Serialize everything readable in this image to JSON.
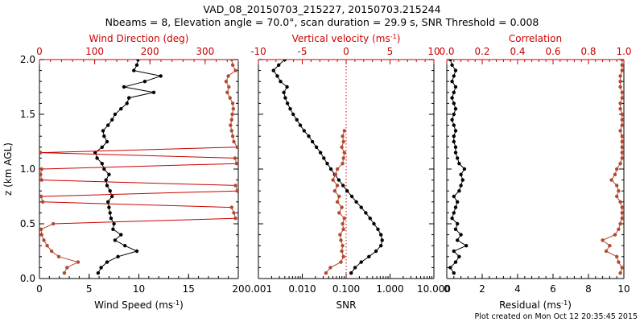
{
  "title": {
    "line1": "VAD_08_20150703_215227, 20150703.215244",
    "line2": "Nbeams = 8, Elevation angle = 70.0°, scan duration = 29.9 s, SNR Threshold = 0.008"
  },
  "footer": "Plot created on Mon Oct 12 20:35:45 2015",
  "colors": {
    "black": "#000000",
    "red": "#cc0000",
    "brown": "#b5472e"
  },
  "chart_data": [
    {
      "type": "line",
      "panel": "left",
      "ylabel": "z (km AGL)",
      "ylim": [
        0,
        2
      ],
      "yticks": [
        "0.0",
        "0.5",
        "1.0",
        "1.5",
        "2.0"
      ],
      "bottom_axis": {
        "label": "Wind Speed (ms",
        "label_sup": "-1",
        "label_end": ")",
        "lim": [
          0,
          20
        ],
        "ticks": [
          "0",
          "5",
          "10",
          "15",
          "20"
        ]
      },
      "top_axis": {
        "label": "Wind Direction (deg)",
        "lim": [
          0,
          360
        ],
        "ticks": [
          "0",
          "100",
          "200",
          "300"
        ]
      },
      "series": [
        {
          "name": "Wind Speed",
          "axis": "bottom",
          "color": "black",
          "z": [
            0.05,
            0.1,
            0.15,
            0.2,
            0.25,
            0.3,
            0.35,
            0.4,
            0.45,
            0.5,
            0.55,
            0.6,
            0.65,
            0.7,
            0.75,
            0.8,
            0.85,
            0.9,
            0.95,
            1.0,
            1.05,
            1.1,
            1.15,
            1.2,
            1.25,
            1.3,
            1.35,
            1.4,
            1.45,
            1.5,
            1.55,
            1.6,
            1.65,
            1.7,
            1.75,
            1.8,
            1.85,
            1.9,
            1.95,
            2.0
          ],
          "values": [
            5.9,
            6.2,
            6.8,
            7.9,
            9.8,
            8.6,
            7.6,
            8.2,
            7.4,
            7.5,
            7.2,
            7.1,
            7.0,
            6.9,
            7.3,
            7.1,
            6.8,
            6.7,
            7.0,
            6.5,
            6.3,
            5.8,
            5.6,
            6.3,
            6.8,
            6.5,
            6.4,
            6.9,
            7.3,
            7.6,
            8.2,
            8.8,
            9.0,
            11.5,
            8.5,
            10.6,
            12.2,
            9.5,
            9.8,
            9.9
          ]
        },
        {
          "name": "Wind Direction",
          "axis": "top",
          "color": "brown",
          "z": [
            0.05,
            0.1,
            0.15,
            0.2,
            0.25,
            0.3,
            0.35,
            0.4,
            0.45,
            0.5,
            0.55,
            0.6,
            0.65,
            0.7,
            0.75,
            0.8,
            0.85,
            0.9,
            0.95,
            1.0,
            1.05,
            1.1,
            1.15,
            1.2,
            1.25,
            1.3,
            1.35,
            1.4,
            1.45,
            1.5,
            1.55,
            1.6,
            1.65,
            1.7,
            1.75,
            1.8,
            1.85,
            1.9,
            1.95,
            2.0
          ],
          "values": [
            45,
            50,
            70,
            35,
            22,
            14,
            8,
            4,
            3,
            25,
            355,
            352,
            348,
            6,
            3,
            358,
            355,
            4,
            2,
            4,
            357,
            354,
            2,
            358,
            352,
            350,
            348,
            346,
            348,
            349,
            351,
            350,
            345,
            340,
            343,
            338,
            342,
            355,
            350,
            348
          ]
        }
      ]
    },
    {
      "type": "line",
      "panel": "middle",
      "ylim": [
        0,
        2
      ],
      "bottom_axis": {
        "label": "SNR",
        "scale": "log",
        "lim": [
          0.001,
          10
        ],
        "ticks": [
          "0.001",
          "0.010",
          "0.100",
          "1.000",
          "10.000"
        ]
      },
      "top_axis": {
        "label": "Vertical velocity (ms",
        "label_sup": "-1",
        "label_end": ")",
        "lim": [
          -10,
          10
        ],
        "ticks": [
          "-10",
          "-5",
          "0",
          "5",
          "10"
        ]
      },
      "series": [
        {
          "name": "SNR",
          "axis": "bottom",
          "color": "black",
          "z": [
            0.05,
            0.1,
            0.15,
            0.2,
            0.25,
            0.3,
            0.35,
            0.4,
            0.45,
            0.5,
            0.55,
            0.6,
            0.65,
            0.7,
            0.75,
            0.8,
            0.85,
            0.9,
            0.95,
            1.0,
            1.05,
            1.1,
            1.15,
            1.2,
            1.25,
            1.3,
            1.35,
            1.4,
            1.45,
            1.5,
            1.55,
            1.6,
            1.65,
            1.7,
            1.75,
            1.8,
            1.85,
            1.9,
            1.95,
            2.0
          ],
          "values": [
            0.13,
            0.16,
            0.22,
            0.33,
            0.48,
            0.62,
            0.66,
            0.62,
            0.53,
            0.43,
            0.35,
            0.28,
            0.22,
            0.17,
            0.135,
            0.105,
            0.085,
            0.068,
            0.055,
            0.045,
            0.037,
            0.031,
            0.026,
            0.021,
            0.017,
            0.014,
            0.011,
            0.009,
            0.0075,
            0.0062,
            0.0053,
            0.0046,
            0.0041,
            0.0038,
            0.0045,
            0.0032,
            0.0027,
            0.0022,
            0.0029,
            0.004
          ]
        },
        {
          "name": "Vertical velocity",
          "axis": "top",
          "color": "brown",
          "z": [
            0.05,
            0.1,
            0.15,
            0.2,
            0.25,
            0.3,
            0.35,
            0.4,
            0.45,
            0.5,
            0.55,
            0.6,
            0.65,
            0.7,
            0.75,
            0.8,
            0.85,
            0.9,
            0.95,
            1.0,
            1.05,
            1.1,
            1.15,
            1.2,
            1.25,
            1.3,
            1.35
          ],
          "values": [
            -2.3,
            -1.8,
            -0.6,
            -0.3,
            -0.5,
            -0.4,
            -0.6,
            -0.7,
            -0.3,
            -0.4,
            -0.2,
            -0.8,
            -0.5,
            -1.0,
            -0.8,
            -1.3,
            -1.0,
            -1.5,
            -1.2,
            -1.0,
            -0.4,
            -0.3,
            -0.2,
            -0.5,
            -0.3,
            -0.4,
            -0.2
          ]
        }
      ],
      "reference_line": {
        "axis": "top",
        "value": 0,
        "style": "dotted",
        "color": "red"
      }
    },
    {
      "type": "line",
      "panel": "right",
      "ylim": [
        0,
        2
      ],
      "bottom_axis": {
        "label": "Residual (ms",
        "label_sup": "-1",
        "label_end": ")",
        "lim": [
          0,
          10
        ],
        "ticks": [
          "0",
          "2",
          "4",
          "6",
          "8",
          "10"
        ]
      },
      "top_axis": {
        "label": "Correlation",
        "lim": [
          0,
          1
        ],
        "ticks": [
          "0.0",
          "0.2",
          "0.4",
          "0.6",
          "0.8",
          "1.0"
        ]
      },
      "series": [
        {
          "name": "Residual",
          "axis": "bottom",
          "color": "black",
          "z": [
            0.05,
            0.1,
            0.15,
            0.2,
            0.25,
            0.3,
            0.35,
            0.4,
            0.45,
            0.5,
            0.55,
            0.6,
            0.65,
            0.7,
            0.75,
            0.8,
            0.85,
            0.9,
            0.95,
            1.0,
            1.05,
            1.1,
            1.15,
            1.2,
            1.25,
            1.3,
            1.35,
            1.4,
            1.45,
            1.5,
            1.55,
            1.6,
            1.65,
            1.7,
            1.75,
            1.8,
            1.85,
            1.9,
            1.95,
            2.0
          ],
          "values": [
            0.4,
            0.2,
            0.5,
            0.7,
            0.4,
            1.1,
            0.6,
            0.8,
            0.5,
            0.6,
            0.3,
            0.4,
            0.5,
            0.6,
            0.4,
            0.7,
            0.8,
            0.9,
            0.8,
            1.0,
            0.7,
            0.6,
            0.5,
            0.5,
            0.4,
            0.4,
            0.5,
            0.4,
            0.3,
            0.4,
            0.5,
            0.4,
            0.3,
            0.4,
            0.5,
            0.3,
            0.4,
            0.5,
            0.3,
            0.2
          ]
        },
        {
          "name": "Correlation",
          "axis": "top",
          "color": "brown",
          "z": [
            0.05,
            0.1,
            0.15,
            0.2,
            0.25,
            0.3,
            0.35,
            0.4,
            0.45,
            0.5,
            0.55,
            0.6,
            0.65,
            0.7,
            0.75,
            0.8,
            0.85,
            0.9,
            0.95,
            1.0,
            1.05,
            1.1,
            1.15,
            1.2,
            1.25,
            1.3,
            1.35,
            1.4,
            1.45,
            1.5,
            1.55,
            1.6,
            1.65,
            1.7,
            1.75,
            1.8,
            1.85,
            1.9,
            1.95,
            2.0
          ],
          "values": [
            0.98,
            0.99,
            0.97,
            0.96,
            0.9,
            0.92,
            0.88,
            0.95,
            0.97,
            0.98,
            0.99,
            0.99,
            0.99,
            0.98,
            0.96,
            0.97,
            0.96,
            0.93,
            0.95,
            0.96,
            0.98,
            0.99,
            0.99,
            0.99,
            0.99,
            0.99,
            0.98,
            0.99,
            0.99,
            0.99,
            0.98,
            0.98,
            0.99,
            0.99,
            0.98,
            0.98,
            0.98,
            0.99,
            0.99,
            0.99
          ]
        }
      ]
    }
  ]
}
